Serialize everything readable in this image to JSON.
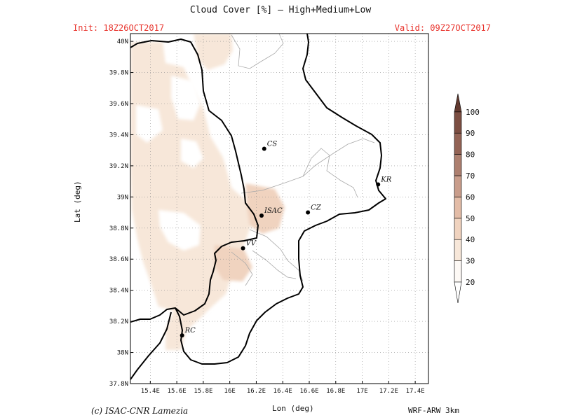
{
  "header": {
    "title": "Cloud Cover [%] — High+Medium+Low",
    "init": "Init: 18Z26OCT2017",
    "valid": "Valid: 09Z27OCT2017"
  },
  "footer": {
    "credit": "(c) ISAC-CNR Lamezia",
    "model": "WRF-ARW 3km"
  },
  "axes": {
    "xlabel": "Lon (deg)",
    "ylabel": "Lat (deg)",
    "x_ticks": [
      {
        "value": 15.4,
        "label": "15.4E"
      },
      {
        "value": 15.6,
        "label": "15.6E"
      },
      {
        "value": 15.8,
        "label": "15.8E"
      },
      {
        "value": 16.0,
        "label": "16E"
      },
      {
        "value": 16.2,
        "label": "16.2E"
      },
      {
        "value": 16.4,
        "label": "16.4E"
      },
      {
        "value": 16.6,
        "label": "16.6E"
      },
      {
        "value": 16.8,
        "label": "16.8E"
      },
      {
        "value": 17.0,
        "label": "17E"
      },
      {
        "value": 17.2,
        "label": "17.2E"
      },
      {
        "value": 17.4,
        "label": "17.4E"
      }
    ],
    "y_ticks": [
      {
        "value": 37.8,
        "label": "37.8N"
      },
      {
        "value": 38.0,
        "label": "38N"
      },
      {
        "value": 38.2,
        "label": "38.2N"
      },
      {
        "value": 38.4,
        "label": "38.4N"
      },
      {
        "value": 38.6,
        "label": "38.6N"
      },
      {
        "value": 38.8,
        "label": "38.8N"
      },
      {
        "value": 39.0,
        "label": "39N"
      },
      {
        "value": 39.2,
        "label": "39.2N"
      },
      {
        "value": 39.4,
        "label": "39.4N"
      },
      {
        "value": 39.6,
        "label": "39.6N"
      },
      {
        "value": 39.8,
        "label": "39.8N"
      },
      {
        "value": 40.0,
        "label": "40N"
      }
    ],
    "lon_range": [
      15.25,
      17.5
    ],
    "lat_range": [
      37.8,
      40.05
    ]
  },
  "cities": [
    {
      "name": "CS",
      "lon": 16.26,
      "lat": 39.31,
      "color": "#111111"
    },
    {
      "name": "ISAC",
      "lon": 16.24,
      "lat": 38.88,
      "color": "#e8332c"
    },
    {
      "name": "CZ",
      "lon": 16.59,
      "lat": 38.9,
      "color": "#111111"
    },
    {
      "name": "KR",
      "lon": 17.12,
      "lat": 39.08,
      "color": "#111111"
    },
    {
      "name": "VV",
      "lon": 16.1,
      "lat": 38.67,
      "color": "#111111"
    },
    {
      "name": "RC",
      "lon": 15.64,
      "lat": 38.11,
      "color": "#111111"
    }
  ],
  "legend": {
    "levels": [
      "20",
      "30",
      "40",
      "50",
      "60",
      "70",
      "80",
      "90",
      "100"
    ],
    "colors": [
      "#fdf9f5",
      "#f7e7d9",
      "#f0d3bf",
      "#e3bca7",
      "#c99d8b",
      "#ad7f6f",
      "#936355",
      "#7c4e42",
      "#623a30"
    ]
  }
}
